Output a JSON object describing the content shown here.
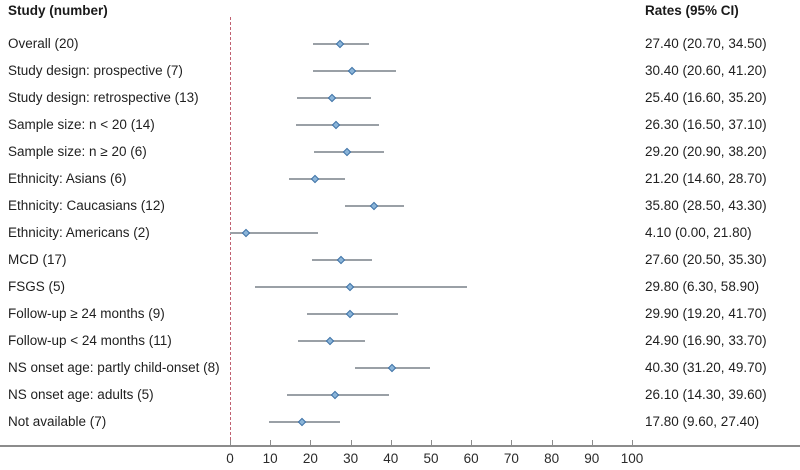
{
  "header": {
    "left": "Study (number)",
    "right": "Rates (95% CI)"
  },
  "chart_data": {
    "type": "forest",
    "title": "",
    "xlabel": "",
    "ylabel": "",
    "x_axis": {
      "range": [
        0,
        100
      ],
      "ticks": [
        0,
        10,
        20,
        30,
        40,
        50,
        60,
        70,
        80,
        90,
        100
      ],
      "reference_line_x": 0,
      "grid": false
    },
    "rows": [
      {
        "label": "Overall (20)",
        "rate": 27.4,
        "ci_low": 20.7,
        "ci_high": 34.5,
        "rate_text": "27.40 (20.70, 34.50)"
      },
      {
        "label": "Study design: prospective (7)",
        "rate": 30.4,
        "ci_low": 20.6,
        "ci_high": 41.2,
        "rate_text": "30.40 (20.60, 41.20)"
      },
      {
        "label": "Study design: retrospective (13)",
        "rate": 25.4,
        "ci_low": 16.6,
        "ci_high": 35.2,
        "rate_text": "25.40 (16.60, 35.20)"
      },
      {
        "label": "Sample size: n < 20 (14)",
        "rate": 26.3,
        "ci_low": 16.5,
        "ci_high": 37.1,
        "rate_text": "26.30 (16.50, 37.10)"
      },
      {
        "label": "Sample size: n ≥ 20 (6)",
        "rate": 29.2,
        "ci_low": 20.9,
        "ci_high": 38.2,
        "rate_text": "29.20 (20.90, 38.20)"
      },
      {
        "label": "Ethnicity: Asians (6)",
        "rate": 21.2,
        "ci_low": 14.6,
        "ci_high": 28.7,
        "rate_text": "21.20 (14.60, 28.70)"
      },
      {
        "label": "Ethnicity: Caucasians (12)",
        "rate": 35.8,
        "ci_low": 28.5,
        "ci_high": 43.3,
        "rate_text": "35.80 (28.50, 43.30)"
      },
      {
        "label": "Ethnicity: Americans (2)",
        "rate": 4.1,
        "ci_low": 0.0,
        "ci_high": 21.8,
        "rate_text": "4.10 (0.00, 21.80)"
      },
      {
        "label": "MCD (17)",
        "rate": 27.6,
        "ci_low": 20.5,
        "ci_high": 35.3,
        "rate_text": "27.60 (20.50, 35.30)"
      },
      {
        "label": "FSGS (5)",
        "rate": 29.8,
        "ci_low": 6.3,
        "ci_high": 58.9,
        "rate_text": "29.80 (6.30, 58.90)"
      },
      {
        "label": "Follow-up ≥ 24 months (9)",
        "rate": 29.9,
        "ci_low": 19.2,
        "ci_high": 41.7,
        "rate_text": "29.90 (19.20, 41.70)"
      },
      {
        "label": "Follow-up < 24 months (11)",
        "rate": 24.9,
        "ci_low": 16.9,
        "ci_high": 33.7,
        "rate_text": "24.90 (16.90, 33.70)"
      },
      {
        "label": "NS onset age: partly child-onset (8)",
        "rate": 40.3,
        "ci_low": 31.2,
        "ci_high": 49.7,
        "rate_text": "40.30 (31.20, 49.70)"
      },
      {
        "label": "NS onset age: adults (5)",
        "rate": 26.1,
        "ci_low": 14.3,
        "ci_high": 39.6,
        "rate_text": "26.10 (14.30, 39.60)"
      },
      {
        "label": "Not available (7)",
        "rate": 17.8,
        "ci_low": 9.6,
        "ci_high": 27.4,
        "rate_text": "17.80 (9.60, 27.40)"
      }
    ]
  },
  "colors": {
    "reference_line": "#c06070",
    "ci_line": "#9aa0a6",
    "marker_fill": "#8ab4d8",
    "marker_border": "#3f72a6",
    "axis_line": "#8c8c8c",
    "text": "#1f1f1f"
  }
}
